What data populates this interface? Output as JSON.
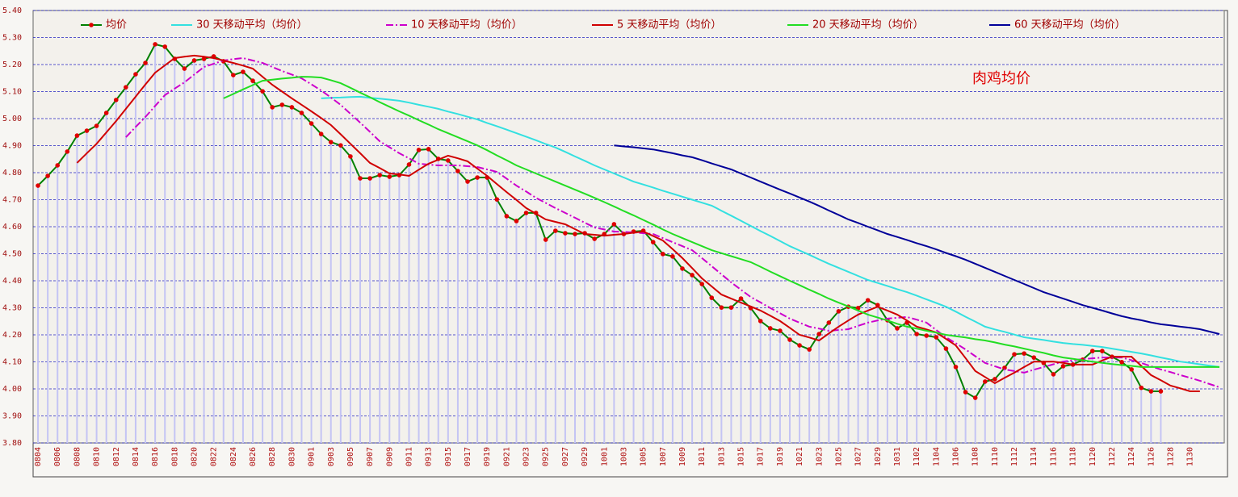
{
  "chart_data": {
    "type": "line",
    "annotation": "肉鸡均价",
    "categories": [
      "0804",
      null,
      "0806",
      null,
      "0808",
      null,
      "0810",
      null,
      "0812",
      null,
      "0814",
      null,
      "0816",
      null,
      "0818",
      null,
      "0820",
      null,
      "0822",
      null,
      "0824",
      null,
      "0826",
      null,
      "0828",
      null,
      "0830",
      null,
      "0901",
      null,
      "0903",
      null,
      "0905",
      null,
      "0907",
      null,
      "0909",
      null,
      "0911",
      null,
      "0913",
      null,
      "0915",
      null,
      "0917",
      null,
      "0919",
      null,
      "0921",
      null,
      "0923",
      null,
      "0925",
      null,
      "0927",
      null,
      "0929",
      null,
      "1001",
      null,
      "1003",
      null,
      "1005",
      null,
      "1007",
      null,
      "1009",
      null,
      "1011",
      null,
      "1013",
      null,
      "1015",
      null,
      "1017",
      null,
      "1019",
      null,
      "1021",
      null,
      "1023",
      null,
      "1025",
      null,
      "1027",
      null,
      "1029",
      null,
      "1031",
      null,
      "1102",
      null,
      "1104",
      null,
      "1106",
      null,
      "1108",
      null,
      "1110",
      null,
      "1112",
      null,
      "1114",
      null,
      "1116",
      null,
      "1118",
      null,
      "1120",
      null,
      "1122",
      null,
      "1124",
      null,
      "1126",
      null,
      "1128",
      null,
      "1130",
      null,
      null,
      null
    ],
    "ylim": [
      3.8,
      5.4
    ],
    "yticks": [
      {
        "value": 5.4,
        "label": "5.40"
      },
      {
        "value": 5.3,
        "label": "5.30"
      },
      {
        "value": 5.2,
        "label": "5.20"
      },
      {
        "value": 5.1,
        "label": "5.10"
      },
      {
        "value": 5.0,
        "label": "5.00"
      },
      {
        "value": 4.9,
        "label": "4.90"
      },
      {
        "value": 4.8,
        "label": "4.80"
      },
      {
        "value": 4.7,
        "label": "4.70"
      },
      {
        "value": 4.6,
        "label": "4.60"
      },
      {
        "value": 4.5,
        "label": "4.50"
      },
      {
        "value": 4.4,
        "label": "4.40"
      },
      {
        "value": 4.3,
        "label": "4.30"
      },
      {
        "value": 4.2,
        "label": "4.20"
      },
      {
        "value": 4.1,
        "label": "4.10"
      },
      {
        "value": 4.0,
        "label": "4.00"
      },
      {
        "value": 3.9,
        "label": "3.90"
      },
      {
        "value": 3.8,
        "label": "3.80"
      }
    ],
    "grid": true,
    "series": [
      {
        "name": "均价",
        "color": "#008000",
        "marker": "circle",
        "marker_color": "#e00000",
        "bars_color": "#c4c4f4",
        "values": [
          4.752,
          4.788,
          4.827,
          4.878,
          4.937,
          4.955,
          4.973,
          5.021,
          5.069,
          5.116,
          5.164,
          5.206,
          5.275,
          5.266,
          5.221,
          5.185,
          5.215,
          5.221,
          5.23,
          5.212,
          5.161,
          5.173,
          5.14,
          5.101,
          5.042,
          5.051,
          5.042,
          5.021,
          4.982,
          4.943,
          4.913,
          4.901,
          4.86,
          4.779,
          4.779,
          4.791,
          4.785,
          4.791,
          4.83,
          4.884,
          4.887,
          4.851,
          4.845,
          4.806,
          4.767,
          4.782,
          4.782,
          4.701,
          4.639,
          4.621,
          4.651,
          4.651,
          4.552,
          4.585,
          4.576,
          4.573,
          4.576,
          4.555,
          4.573,
          4.609,
          4.573,
          4.582,
          4.585,
          4.543,
          4.499,
          4.49,
          4.445,
          4.421,
          4.388,
          4.337,
          4.301,
          4.301,
          4.334,
          4.299,
          4.251,
          4.224,
          4.215,
          4.182,
          4.161,
          4.146,
          4.203,
          4.245,
          4.287,
          4.304,
          4.299,
          4.328,
          4.31,
          4.254,
          4.224,
          4.245,
          4.203,
          4.197,
          4.191,
          4.149,
          4.081,
          3.988,
          3.967,
          4.027,
          4.036,
          4.078,
          4.128,
          4.131,
          4.116,
          4.096,
          4.054,
          4.084,
          4.09,
          4.108,
          4.14,
          4.14,
          4.119,
          4.099,
          4.072,
          4.004,
          3.991,
          3.991,
          null,
          null,
          null,
          null,
          null,
          null
        ]
      },
      {
        "name": "30 天移动平均（均价）",
        "color": "#33e0e0",
        "values": [
          null,
          null,
          null,
          null,
          null,
          null,
          null,
          null,
          null,
          null,
          null,
          null,
          null,
          null,
          null,
          null,
          null,
          null,
          null,
          null,
          null,
          null,
          null,
          null,
          null,
          null,
          null,
          null,
          null,
          5.075,
          5.077,
          5.078,
          5.08,
          5.081,
          5.077,
          5.074,
          5.07,
          5.066,
          5.059,
          5.051,
          5.044,
          5.036,
          5.026,
          5.017,
          5.007,
          4.997,
          4.984,
          4.972,
          4.959,
          4.946,
          4.933,
          4.92,
          4.906,
          4.893,
          4.877,
          4.86,
          4.844,
          4.827,
          4.812,
          4.797,
          4.782,
          4.767,
          4.756,
          4.745,
          4.733,
          4.722,
          4.711,
          4.7,
          4.689,
          4.678,
          4.659,
          4.641,
          4.622,
          4.603,
          4.584,
          4.566,
          4.547,
          4.528,
          4.512,
          4.496,
          4.479,
          4.463,
          4.448,
          4.433,
          4.418,
          4.403,
          4.392,
          4.381,
          4.369,
          4.358,
          4.345,
          4.331,
          4.318,
          4.304,
          4.286,
          4.267,
          4.249,
          4.23,
          4.22,
          4.211,
          4.201,
          4.191,
          4.186,
          4.181,
          4.175,
          4.17,
          4.166,
          4.163,
          4.159,
          4.155,
          4.149,
          4.143,
          4.137,
          4.131,
          4.124,
          4.116,
          4.109,
          4.101,
          4.096,
          4.091,
          4.086,
          4.081
        ]
      },
      {
        "name": "10 天移动平均（均价）",
        "color": "#cc00cc",
        "dash": "dashdot",
        "values": [
          null,
          null,
          null,
          null,
          null,
          null,
          null,
          null,
          null,
          4.931,
          4.969,
          5.006,
          5.047,
          5.087,
          5.111,
          5.134,
          5.163,
          5.191,
          5.203,
          5.215,
          5.22,
          5.224,
          5.215,
          5.206,
          5.191,
          5.176,
          5.163,
          5.149,
          5.127,
          5.104,
          5.078,
          5.051,
          5.018,
          4.985,
          4.951,
          4.916,
          4.894,
          4.872,
          4.853,
          4.833,
          4.83,
          4.827,
          4.827,
          4.827,
          4.824,
          4.821,
          4.812,
          4.803,
          4.778,
          4.752,
          4.73,
          4.707,
          4.688,
          4.669,
          4.651,
          4.633,
          4.615,
          4.597,
          4.59,
          4.582,
          4.581,
          4.579,
          4.576,
          4.573,
          4.558,
          4.543,
          4.528,
          4.513,
          4.484,
          4.454,
          4.424,
          4.394,
          4.367,
          4.34,
          4.32,
          4.299,
          4.28,
          4.26,
          4.245,
          4.23,
          4.223,
          4.215,
          4.218,
          4.221,
          4.233,
          4.245,
          4.253,
          4.26,
          4.263,
          4.266,
          4.256,
          4.245,
          4.218,
          4.191,
          4.169,
          4.146,
          4.121,
          4.096,
          4.084,
          4.072,
          4.066,
          4.06,
          4.071,
          4.081,
          4.091,
          4.101,
          4.106,
          4.11,
          4.113,
          4.116,
          4.116,
          4.116,
          4.106,
          4.096,
          4.084,
          4.072,
          4.062,
          4.051,
          4.041,
          4.03,
          4.018,
          4.006
        ]
      },
      {
        "name": "5 天移动平均（均价）",
        "color": "#d00000",
        "values": [
          null,
          null,
          null,
          null,
          4.836,
          4.872,
          4.907,
          4.949,
          4.991,
          5.036,
          5.081,
          5.126,
          5.17,
          5.197,
          5.224,
          5.229,
          5.233,
          5.229,
          5.224,
          5.215,
          5.206,
          5.196,
          5.185,
          5.155,
          5.125,
          5.1,
          5.075,
          5.051,
          5.027,
          5.002,
          4.976,
          4.942,
          4.907,
          4.872,
          4.836,
          4.817,
          4.797,
          4.793,
          4.788,
          4.811,
          4.833,
          4.848,
          4.863,
          4.853,
          4.842,
          4.815,
          4.788,
          4.758,
          4.728,
          4.699,
          4.669,
          4.648,
          4.627,
          4.618,
          4.609,
          4.591,
          4.573,
          4.57,
          4.567,
          4.57,
          4.573,
          4.578,
          4.582,
          4.566,
          4.549,
          4.517,
          4.484,
          4.447,
          4.409,
          4.379,
          4.349,
          4.334,
          4.319,
          4.305,
          4.29,
          4.271,
          4.251,
          4.226,
          4.2,
          4.19,
          4.179,
          4.205,
          4.23,
          4.253,
          4.275,
          4.29,
          4.304,
          4.29,
          4.275,
          4.253,
          4.23,
          4.22,
          4.209,
          4.185,
          4.161,
          4.114,
          4.066,
          4.044,
          4.021,
          4.041,
          4.06,
          4.081,
          4.101,
          4.101,
          4.101,
          4.096,
          4.09,
          4.09,
          4.09,
          4.105,
          4.119,
          4.119,
          4.119,
          4.085,
          4.051,
          4.032,
          4.012,
          4.002,
          3.991,
          3.991,
          null,
          null
        ]
      },
      {
        "name": "20 天移动平均（均价）",
        "color": "#22dd22",
        "values": [
          null,
          null,
          null,
          null,
          null,
          null,
          null,
          null,
          null,
          null,
          null,
          null,
          null,
          null,
          null,
          null,
          null,
          null,
          null,
          5.075,
          5.091,
          5.108,
          5.124,
          5.14,
          5.144,
          5.148,
          5.151,
          5.155,
          5.154,
          5.152,
          5.142,
          5.131,
          5.114,
          5.096,
          5.079,
          5.061,
          5.044,
          5.027,
          5.011,
          4.994,
          4.978,
          4.961,
          4.946,
          4.931,
          4.916,
          4.901,
          4.883,
          4.864,
          4.846,
          4.827,
          4.812,
          4.797,
          4.782,
          4.767,
          4.752,
          4.737,
          4.722,
          4.707,
          4.691,
          4.675,
          4.658,
          4.642,
          4.625,
          4.608,
          4.59,
          4.573,
          4.558,
          4.543,
          4.528,
          4.513,
          4.502,
          4.491,
          4.48,
          4.469,
          4.452,
          4.434,
          4.417,
          4.4,
          4.384,
          4.367,
          4.351,
          4.334,
          4.319,
          4.305,
          4.29,
          4.275,
          4.264,
          4.253,
          4.241,
          4.23,
          4.223,
          4.215,
          4.208,
          4.2,
          4.195,
          4.19,
          4.184,
          4.179,
          4.172,
          4.164,
          4.157,
          4.149,
          4.141,
          4.133,
          4.124,
          4.116,
          4.111,
          4.106,
          4.101,
          4.096,
          4.092,
          4.088,
          4.085,
          4.081,
          4.081,
          4.081,
          4.081,
          4.081,
          4.081,
          4.081,
          4.081,
          4.081
        ]
      },
      {
        "name": "60 天移动平均（均价）",
        "color": "#000099",
        "values": [
          null,
          null,
          null,
          null,
          null,
          null,
          null,
          null,
          null,
          null,
          null,
          null,
          null,
          null,
          null,
          null,
          null,
          null,
          null,
          null,
          null,
          null,
          null,
          null,
          null,
          null,
          null,
          null,
          null,
          null,
          null,
          null,
          null,
          null,
          null,
          null,
          null,
          null,
          null,
          null,
          null,
          null,
          null,
          null,
          null,
          null,
          null,
          null,
          null,
          null,
          null,
          null,
          null,
          null,
          null,
          null,
          null,
          null,
          null,
          4.901,
          4.897,
          4.894,
          4.89,
          4.886,
          4.879,
          4.872,
          4.864,
          4.857,
          4.846,
          4.834,
          4.823,
          4.812,
          4.797,
          4.782,
          4.767,
          4.752,
          4.737,
          4.723,
          4.708,
          4.693,
          4.677,
          4.66,
          4.644,
          4.627,
          4.614,
          4.6,
          4.587,
          4.573,
          4.562,
          4.551,
          4.539,
          4.528,
          4.516,
          4.503,
          4.491,
          4.478,
          4.463,
          4.448,
          4.433,
          4.418,
          4.403,
          4.388,
          4.373,
          4.358,
          4.346,
          4.334,
          4.322,
          4.31,
          4.3,
          4.29,
          4.279,
          4.269,
          4.261,
          4.254,
          4.246,
          4.239,
          4.235,
          4.23,
          4.226,
          4.221,
          4.212,
          4.203
        ]
      }
    ]
  }
}
